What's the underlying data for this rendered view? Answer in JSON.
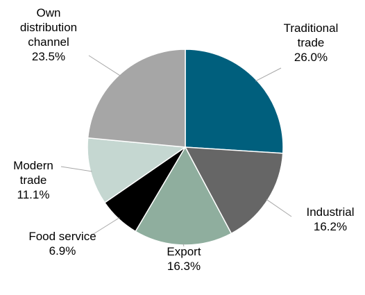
{
  "chart_data": {
    "type": "pie",
    "categories": [
      "Traditional trade",
      "Industrial",
      "Export",
      "Food service",
      "Modern trade",
      "Own distribution channel"
    ],
    "values": [
      26.0,
      16.2,
      16.3,
      6.9,
      11.1,
      23.5
    ],
    "value_labels": [
      "26.0%",
      "16.2%",
      "16.3%",
      "6.9%",
      "11.1%",
      "23.5%"
    ],
    "colors": [
      "#005f7d",
      "#666666",
      "#8fae9e",
      "#000000",
      "#c5d7d1",
      "#a6a6a6"
    ]
  }
}
